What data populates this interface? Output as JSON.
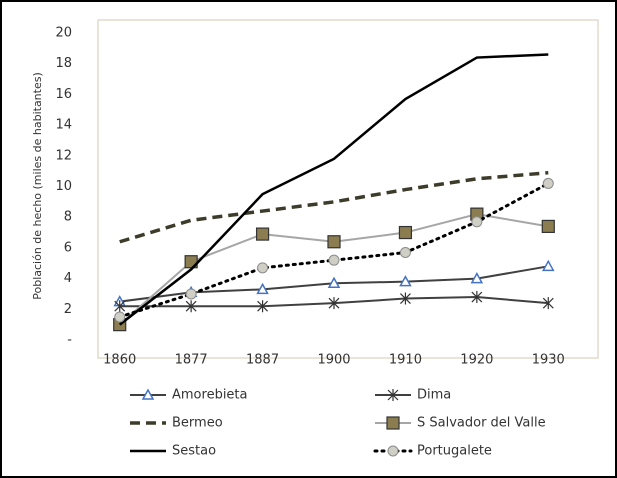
{
  "chart_data": {
    "type": "line",
    "y_label": "Población de hecho (miles de habitantes)",
    "categories": [
      "1860",
      "1877",
      "1887",
      "1900",
      "1910",
      "1920",
      "1930"
    ],
    "ylim": [
      0,
      20
    ],
    "yticks": [
      {
        "value": 0,
        "label": "-"
      },
      2,
      4,
      6,
      8,
      10,
      12,
      14,
      16,
      18,
      20
    ],
    "grid": false,
    "legend": "bottom",
    "series": [
      {
        "name": "Amorebieta",
        "color": "#404040",
        "marker": "triangle",
        "marker_color": "#4472c4",
        "line_style": "solid",
        "values": [
          2.5,
          3.1,
          3.3,
          3.7,
          3.8,
          4.0,
          4.8
        ]
      },
      {
        "name": "Dima",
        "color": "#404040",
        "marker": "asterisk",
        "marker_color": "#333333",
        "line_style": "solid",
        "values": [
          2.2,
          2.2,
          2.2,
          2.4,
          2.7,
          2.8,
          2.4
        ]
      },
      {
        "name": "Bermeo",
        "color": "#3d3b2a",
        "marker": "none",
        "line_style": "dashed",
        "values": [
          6.4,
          7.8,
          8.4,
          9.0,
          9.8,
          10.5,
          10.9
        ]
      },
      {
        "name": "S Salvador del Valle",
        "color": "#a6a6a6",
        "marker": "square",
        "marker_color": "#8b7d50",
        "line_style": "solid",
        "values": [
          1.0,
          5.1,
          6.9,
          6.4,
          7.0,
          8.2,
          7.4
        ]
      },
      {
        "name": "Sestao",
        "color": "#000000",
        "marker": "none",
        "line_style": "solid",
        "values": [
          1.0,
          4.6,
          9.5,
          11.8,
          15.7,
          18.4,
          18.6
        ]
      },
      {
        "name": "Portugalete",
        "color": "#000000",
        "marker": "circle",
        "marker_color": "#cfcfc6",
        "line_style": "dotted",
        "values": [
          1.5,
          3.0,
          4.7,
          5.2,
          5.7,
          7.7,
          10.2
        ]
      }
    ]
  }
}
